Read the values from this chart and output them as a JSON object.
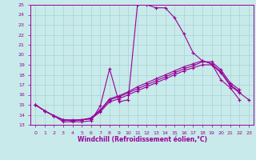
{
  "xlabel": "Windchill (Refroidissement éolien,°C)",
  "xlim": [
    -0.5,
    23.5
  ],
  "ylim": [
    13,
    25
  ],
  "xticks": [
    0,
    1,
    2,
    3,
    4,
    5,
    6,
    7,
    8,
    9,
    10,
    11,
    12,
    13,
    14,
    15,
    16,
    17,
    18,
    19,
    20,
    21,
    22,
    23
  ],
  "yticks": [
    13,
    14,
    15,
    16,
    17,
    18,
    19,
    20,
    21,
    22,
    23,
    24,
    25
  ],
  "bg_color": "#c8eaea",
  "line_color": "#990099",
  "grid_color": "#a8d4d4",
  "lines": [
    {
      "x": [
        0,
        1,
        2,
        3,
        4,
        5,
        6,
        7,
        8,
        9,
        10,
        11,
        12,
        13,
        14,
        15,
        16,
        17,
        18,
        19,
        20,
        21,
        22
      ],
      "y": [
        15.0,
        14.4,
        13.9,
        13.3,
        13.3,
        13.3,
        13.4,
        14.9,
        18.6,
        15.3,
        15.5,
        25.0,
        25.0,
        24.7,
        24.7,
        23.7,
        22.1,
        20.2,
        19.4,
        19.1,
        17.5,
        16.7,
        15.5
      ]
    },
    {
      "x": [
        0,
        1,
        2,
        3,
        4,
        5,
        6,
        7,
        8,
        9,
        10,
        11,
        12,
        13,
        14,
        15,
        16,
        17,
        18,
        19,
        20,
        21,
        22
      ],
      "y": [
        15.0,
        14.4,
        13.9,
        13.5,
        13.4,
        13.5,
        13.6,
        14.4,
        15.5,
        15.8,
        16.2,
        16.6,
        17.0,
        17.4,
        17.8,
        18.2,
        18.6,
        18.9,
        19.3,
        19.3,
        18.5,
        17.2,
        16.5
      ]
    },
    {
      "x": [
        0,
        1,
        2,
        3,
        4,
        5,
        6,
        7,
        8,
        9,
        10,
        11,
        12,
        13,
        14,
        15,
        16,
        17,
        18,
        19,
        20,
        21,
        22
      ],
      "y": [
        15.0,
        14.4,
        13.9,
        13.5,
        13.4,
        13.5,
        13.7,
        14.5,
        15.6,
        15.9,
        16.3,
        16.8,
        17.2,
        17.6,
        18.0,
        18.4,
        18.8,
        19.1,
        19.4,
        19.1,
        18.3,
        17.0,
        16.3
      ]
    },
    {
      "x": [
        0,
        1,
        2,
        3,
        4,
        5,
        6,
        7,
        8,
        9,
        10,
        11,
        12,
        13,
        14,
        15,
        16,
        17,
        18,
        19,
        20,
        21,
        22,
        23
      ],
      "y": [
        15.0,
        14.4,
        13.9,
        13.5,
        13.5,
        13.5,
        13.6,
        14.3,
        15.3,
        15.6,
        16.0,
        16.4,
        16.8,
        17.2,
        17.6,
        18.0,
        18.4,
        18.7,
        19.0,
        19.0,
        18.2,
        16.9,
        16.2,
        15.5
      ]
    }
  ]
}
